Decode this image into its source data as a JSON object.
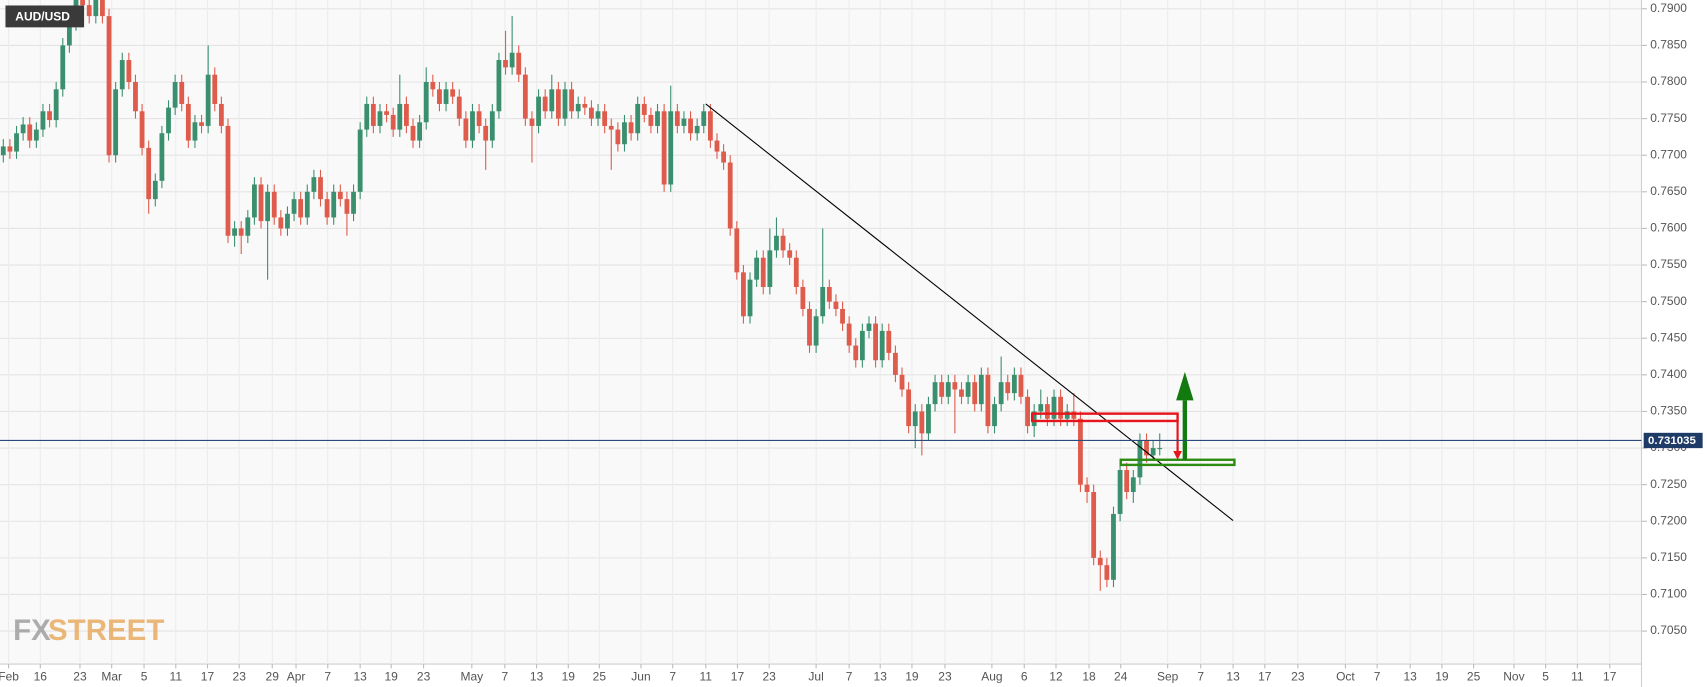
{
  "chart_data": {
    "type": "candlestick",
    "series": [
      {
        "name": "AUD/USD",
        "up_color": "#3a8f6e",
        "down_color": "#df5b4b",
        "open": [
          0.77,
          0.7712,
          0.7705,
          0.773,
          0.7742,
          0.772,
          0.7735,
          0.776,
          0.7748,
          0.779,
          0.785,
          0.788,
          0.792,
          0.7905,
          0.789,
          0.793,
          0.789,
          0.77,
          0.779,
          0.783,
          0.78,
          0.776,
          0.771,
          0.764,
          0.7665,
          0.773,
          0.7765,
          0.78,
          0.777,
          0.772,
          0.7745,
          0.774,
          0.781,
          0.777,
          0.774,
          0.759,
          0.76,
          0.759,
          0.7615,
          0.766,
          0.761,
          0.765,
          0.7615,
          0.76,
          0.762,
          0.764,
          0.7615,
          0.765,
          0.767,
          0.764,
          0.7615,
          0.765,
          0.764,
          0.762,
          0.765,
          0.7735,
          0.777,
          0.774,
          0.776,
          0.7755,
          0.7735,
          0.777,
          0.774,
          0.772,
          0.7745,
          0.78,
          0.779,
          0.777,
          0.779,
          0.778,
          0.775,
          0.772,
          0.776,
          0.774,
          0.772,
          0.776,
          0.783,
          0.782,
          0.784,
          0.781,
          0.775,
          0.774,
          0.778,
          0.776,
          0.779,
          0.775,
          0.779,
          0.776,
          0.777,
          0.7765,
          0.775,
          0.776,
          0.774,
          0.7735,
          0.7715,
          0.7745,
          0.773,
          0.777,
          0.7755,
          0.774,
          0.776,
          0.766,
          0.776,
          0.774,
          0.775,
          0.773,
          0.774,
          0.776,
          0.772,
          0.7705,
          0.769,
          0.76,
          0.754,
          0.748,
          0.753,
          0.756,
          0.752,
          0.757,
          0.759,
          0.757,
          0.756,
          0.752,
          0.749,
          0.744,
          0.748,
          0.752,
          0.75,
          0.749,
          0.747,
          0.744,
          0.742,
          0.746,
          0.747,
          0.742,
          0.746,
          0.743,
          0.74,
          0.738,
          0.733,
          0.735,
          0.732,
          0.736,
          0.739,
          0.737,
          0.739,
          0.738,
          0.737,
          0.739,
          0.736,
          0.74,
          0.733,
          0.736,
          0.739,
          0.7375,
          0.74,
          0.737,
          0.733,
          0.735,
          0.736,
          0.734,
          0.737,
          0.734,
          0.735,
          0.734,
          0.725,
          0.724,
          0.715,
          0.714,
          0.712,
          0.721,
          0.727,
          0.724,
          0.726,
          0.731,
          0.729,
          0.73
        ],
        "high": [
          0.7722,
          0.7722,
          0.774,
          0.7752,
          0.7752,
          0.7745,
          0.777,
          0.777,
          0.78,
          0.786,
          0.789,
          0.793,
          0.793,
          0.7915,
          0.794,
          0.794,
          0.79,
          0.78,
          0.784,
          0.784,
          0.781,
          0.777,
          0.772,
          0.7675,
          0.774,
          0.7775,
          0.781,
          0.781,
          0.778,
          0.7755,
          0.7755,
          0.785,
          0.782,
          0.778,
          0.775,
          0.761,
          0.761,
          0.7625,
          0.767,
          0.767,
          0.766,
          0.766,
          0.7625,
          0.763,
          0.765,
          0.765,
          0.766,
          0.768,
          0.768,
          0.765,
          0.766,
          0.766,
          0.765,
          0.766,
          0.7745,
          0.778,
          0.778,
          0.777,
          0.777,
          0.7765,
          0.781,
          0.778,
          0.775,
          0.7755,
          0.782,
          0.781,
          0.78,
          0.78,
          0.78,
          0.779,
          0.776,
          0.777,
          0.777,
          0.775,
          0.777,
          0.784,
          0.787,
          0.789,
          0.785,
          0.782,
          0.776,
          0.779,
          0.779,
          0.781,
          0.78,
          0.78,
          0.78,
          0.778,
          0.778,
          0.7775,
          0.777,
          0.777,
          0.775,
          0.7745,
          0.7755,
          0.7755,
          0.778,
          0.778,
          0.7765,
          0.777,
          0.777,
          0.7795,
          0.777,
          0.776,
          0.776,
          0.775,
          0.777,
          0.777,
          0.773,
          0.7715,
          0.77,
          0.761,
          0.755,
          0.754,
          0.757,
          0.757,
          0.76,
          0.7615,
          0.76,
          0.758,
          0.757,
          0.753,
          0.75,
          0.749,
          0.76,
          0.753,
          0.751,
          0.75,
          0.748,
          0.745,
          0.747,
          0.748,
          0.748,
          0.747,
          0.747,
          0.744,
          0.741,
          0.739,
          0.736,
          0.736,
          0.737,
          0.74,
          0.74,
          0.74,
          0.74,
          0.739,
          0.74,
          0.74,
          0.741,
          0.741,
          0.737,
          0.7425,
          0.74,
          0.741,
          0.741,
          0.738,
          0.736,
          0.738,
          0.737,
          0.738,
          0.738,
          0.736,
          0.7375,
          0.735,
          0.726,
          0.725,
          0.716,
          0.715,
          0.722,
          0.728,
          0.728,
          0.727,
          0.732,
          0.732,
          0.731,
          0.732
        ],
        "low": [
          0.769,
          0.7695,
          0.7695,
          0.772,
          0.771,
          0.771,
          0.7725,
          0.7738,
          0.7738,
          0.778,
          0.784,
          0.787,
          0.7895,
          0.788,
          0.788,
          0.788,
          0.769,
          0.769,
          0.778,
          0.779,
          0.775,
          0.77,
          0.762,
          0.763,
          0.7655,
          0.772,
          0.7755,
          0.776,
          0.771,
          0.771,
          0.773,
          0.773,
          0.776,
          0.773,
          0.758,
          0.7575,
          0.7565,
          0.758,
          0.7605,
          0.76,
          0.753,
          0.7605,
          0.759,
          0.759,
          0.761,
          0.7605,
          0.7605,
          0.764,
          0.763,
          0.7605,
          0.7605,
          0.763,
          0.759,
          0.761,
          0.764,
          0.7725,
          0.773,
          0.773,
          0.7745,
          0.7725,
          0.7725,
          0.773,
          0.771,
          0.771,
          0.7735,
          0.778,
          0.776,
          0.776,
          0.777,
          0.774,
          0.771,
          0.771,
          0.773,
          0.768,
          0.771,
          0.775,
          0.781,
          0.781,
          0.78,
          0.774,
          0.769,
          0.773,
          0.775,
          0.775,
          0.774,
          0.774,
          0.775,
          0.775,
          0.7755,
          0.774,
          0.774,
          0.773,
          0.768,
          0.7705,
          0.7705,
          0.772,
          0.772,
          0.7745,
          0.773,
          0.773,
          0.765,
          0.765,
          0.773,
          0.773,
          0.772,
          0.772,
          0.773,
          0.771,
          0.7695,
          0.768,
          0.759,
          0.753,
          0.747,
          0.747,
          0.752,
          0.751,
          0.751,
          0.756,
          0.756,
          0.755,
          0.751,
          0.748,
          0.743,
          0.743,
          0.747,
          0.749,
          0.748,
          0.746,
          0.743,
          0.741,
          0.741,
          0.745,
          0.741,
          0.741,
          0.742,
          0.739,
          0.737,
          0.732,
          0.73,
          0.729,
          0.731,
          0.735,
          0.736,
          0.736,
          0.732,
          0.736,
          0.736,
          0.735,
          0.735,
          0.732,
          0.732,
          0.735,
          0.7365,
          0.7365,
          0.736,
          0.732,
          0.7315,
          0.734,
          0.733,
          0.733,
          0.733,
          0.733,
          0.733,
          0.724,
          0.7225,
          0.714,
          0.7105,
          0.711,
          0.711,
          0.72,
          0.723,
          0.7225,
          0.725,
          0.728,
          0.7285,
          0.729
        ],
        "close": [
          0.7712,
          0.7705,
          0.773,
          0.7742,
          0.772,
          0.7735,
          0.776,
          0.7748,
          0.779,
          0.785,
          0.788,
          0.792,
          0.7905,
          0.789,
          0.793,
          0.789,
          0.77,
          0.779,
          0.783,
          0.78,
          0.776,
          0.771,
          0.764,
          0.7665,
          0.773,
          0.7765,
          0.78,
          0.777,
          0.772,
          0.7745,
          0.774,
          0.781,
          0.777,
          0.774,
          0.759,
          0.76,
          0.759,
          0.7615,
          0.766,
          0.761,
          0.765,
          0.7615,
          0.76,
          0.762,
          0.764,
          0.7615,
          0.765,
          0.767,
          0.764,
          0.7615,
          0.765,
          0.764,
          0.762,
          0.765,
          0.7735,
          0.777,
          0.774,
          0.776,
          0.7755,
          0.7735,
          0.777,
          0.774,
          0.772,
          0.7745,
          0.78,
          0.779,
          0.777,
          0.779,
          0.778,
          0.775,
          0.772,
          0.776,
          0.774,
          0.772,
          0.776,
          0.783,
          0.782,
          0.784,
          0.781,
          0.775,
          0.774,
          0.778,
          0.776,
          0.779,
          0.775,
          0.779,
          0.776,
          0.777,
          0.7765,
          0.775,
          0.776,
          0.774,
          0.7735,
          0.7715,
          0.7745,
          0.773,
          0.777,
          0.7755,
          0.774,
          0.776,
          0.766,
          0.776,
          0.774,
          0.775,
          0.773,
          0.774,
          0.776,
          0.772,
          0.7705,
          0.769,
          0.76,
          0.754,
          0.748,
          0.753,
          0.756,
          0.752,
          0.757,
          0.759,
          0.757,
          0.756,
          0.752,
          0.749,
          0.744,
          0.748,
          0.752,
          0.75,
          0.749,
          0.747,
          0.744,
          0.742,
          0.746,
          0.747,
          0.742,
          0.746,
          0.743,
          0.74,
          0.738,
          0.733,
          0.735,
          0.732,
          0.736,
          0.739,
          0.737,
          0.739,
          0.738,
          0.737,
          0.739,
          0.736,
          0.74,
          0.733,
          0.736,
          0.739,
          0.7375,
          0.74,
          0.737,
          0.733,
          0.735,
          0.736,
          0.734,
          0.737,
          0.734,
          0.735,
          0.734,
          0.725,
          0.724,
          0.715,
          0.714,
          0.712,
          0.721,
          0.727,
          0.724,
          0.726,
          0.731,
          0.729,
          0.73,
          0.73
        ]
      }
    ],
    "xlim": [
      -0.5,
      247.9
    ],
    "ylim": [
      0.7005,
      0.7912
    ],
    "yticks": [
      {
        "value": 0.705,
        "label": "0.7050"
      },
      {
        "value": 0.71,
        "label": "0.7100"
      },
      {
        "value": 0.715,
        "label": "0.7150"
      },
      {
        "value": 0.72,
        "label": "0.7200"
      },
      {
        "value": 0.725,
        "label": "0.7250"
      },
      {
        "value": 0.73,
        "label": "0.7300"
      },
      {
        "value": 0.735,
        "label": "0.7350"
      },
      {
        "value": 0.74,
        "label": "0.7400"
      },
      {
        "value": 0.745,
        "label": "0.7450"
      },
      {
        "value": 0.75,
        "label": "0.7500"
      },
      {
        "value": 0.755,
        "label": "0.7550"
      },
      {
        "value": 0.76,
        "label": "0.7600"
      },
      {
        "value": 0.765,
        "label": "0.7650"
      },
      {
        "value": 0.77,
        "label": "0.7700"
      },
      {
        "value": 0.775,
        "label": "0.7750"
      },
      {
        "value": 0.78,
        "label": "0.7800"
      },
      {
        "value": 0.785,
        "label": "0.7850"
      },
      {
        "value": 0.79,
        "label": "0.7900"
      }
    ],
    "xticks": [
      {
        "value": 0.8,
        "label": "Feb"
      },
      {
        "value": 5.6,
        "label": "16"
      },
      {
        "value": 11.6,
        "label": "23"
      },
      {
        "value": 16.4,
        "label": "Mar"
      },
      {
        "value": 21.3,
        "label": "5"
      },
      {
        "value": 26.1,
        "label": "11"
      },
      {
        "value": 30.9,
        "label": "17"
      },
      {
        "value": 35.7,
        "label": "23"
      },
      {
        "value": 40.7,
        "label": "29"
      },
      {
        "value": 44.3,
        "label": "Apr"
      },
      {
        "value": 49.1,
        "label": "7"
      },
      {
        "value": 54,
        "label": "13"
      },
      {
        "value": 58.7,
        "label": "19"
      },
      {
        "value": 63.6,
        "label": "23"
      },
      {
        "value": 70.9,
        "label": "May"
      },
      {
        "value": 75.9,
        "label": "7"
      },
      {
        "value": 80.7,
        "label": "13"
      },
      {
        "value": 85.5,
        "label": "19"
      },
      {
        "value": 90.2,
        "label": "25"
      },
      {
        "value": 96.5,
        "label": "Jun"
      },
      {
        "value": 101.3,
        "label": "7"
      },
      {
        "value": 106.3,
        "label": "11"
      },
      {
        "value": 111.1,
        "label": "17"
      },
      {
        "value": 115.9,
        "label": "23"
      },
      {
        "value": 123,
        "label": "Jul"
      },
      {
        "value": 128,
        "label": "7"
      },
      {
        "value": 132.7,
        "label": "13"
      },
      {
        "value": 137.5,
        "label": "19"
      },
      {
        "value": 142.5,
        "label": "23"
      },
      {
        "value": 149.6,
        "label": "Aug"
      },
      {
        "value": 154.5,
        "label": "6"
      },
      {
        "value": 159.3,
        "label": "12"
      },
      {
        "value": 164.3,
        "label": "18"
      },
      {
        "value": 169.1,
        "label": "24"
      },
      {
        "value": 176.2,
        "label": "Sep"
      },
      {
        "value": 181.2,
        "label": "7"
      },
      {
        "value": 186.1,
        "label": "13"
      },
      {
        "value": 190.9,
        "label": "17"
      },
      {
        "value": 195.9,
        "label": "23"
      },
      {
        "value": 203.1,
        "label": "Oct"
      },
      {
        "value": 207.9,
        "label": "7"
      },
      {
        "value": 212.9,
        "label": "13"
      },
      {
        "value": 217.7,
        "label": "19"
      },
      {
        "value": 222.5,
        "label": "25"
      },
      {
        "value": 228.6,
        "label": "Nov"
      },
      {
        "value": 233.4,
        "label": "5"
      },
      {
        "value": 238.2,
        "label": "11"
      },
      {
        "value": 243.1,
        "label": "17"
      }
    ],
    "grid": true,
    "current_price": 0.731035,
    "trendline": {
      "x": [
        106.3,
        186.1
      ],
      "y": [
        0.777,
        0.7201
      ],
      "color": "#000000"
    },
    "boxes": [
      {
        "x": [
          155.7,
          177.7
        ],
        "y": [
          0.7337,
          0.7347
        ],
        "color": "#e8141c"
      },
      {
        "x": [
          169.1,
          186.3
        ],
        "y": [
          0.7277,
          0.7284
        ],
        "color": "#2e8b12"
      }
    ],
    "arrows": [
      {
        "x": 177.7,
        "y": [
          0.7337,
          0.7284
        ],
        "color": "#e8141c"
      },
      {
        "x": 178.8,
        "y": [
          0.7284,
          0.7404
        ],
        "color": "#137a10"
      }
    ],
    "watermark": [
      "FX",
      "STREET"
    ]
  }
}
